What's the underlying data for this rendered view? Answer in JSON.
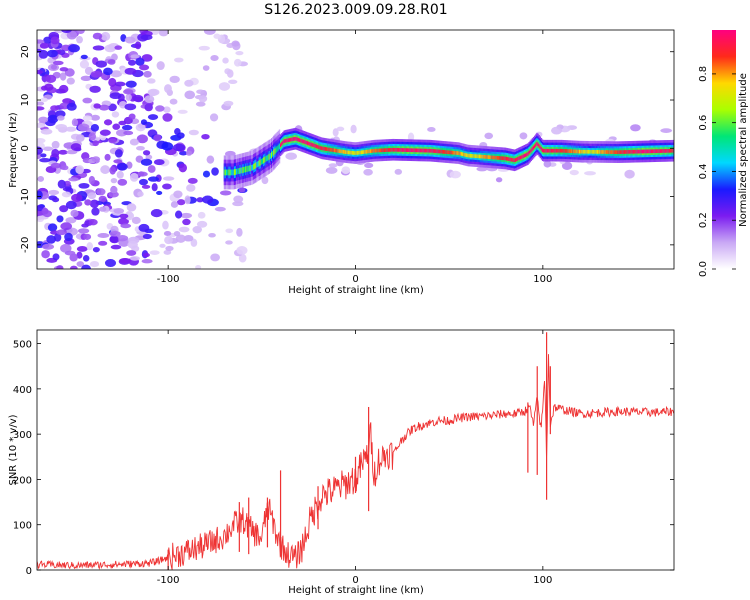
{
  "title": "S126.2023.009.09.28.R01",
  "chart_data": [
    {
      "type": "heatmap",
      "xlabel": "Height of straight line (km)",
      "ylabel": "Frequency (Hz)",
      "xlim": [
        -170,
        170
      ],
      "ylim": [
        -25,
        24.5
      ],
      "xticks": [
        "-100",
        "0",
        "100"
      ],
      "yticks": [
        "-20",
        "-10",
        "0",
        "10",
        "20"
      ],
      "ridge": {
        "x": [
          -65,
          -55,
          -45,
          -38,
          -32,
          -25,
          -18,
          -10,
          -5,
          0,
          10,
          20,
          40,
          55,
          60,
          70,
          80,
          85,
          92,
          97,
          100,
          110,
          120,
          140,
          160,
          170
        ],
        "y": [
          -5,
          -4,
          -1.5,
          1.5,
          2,
          1,
          0,
          -0.5,
          -0.8,
          -1,
          -0.5,
          -0.3,
          -0.5,
          -1,
          -1.5,
          -1.8,
          -2.1,
          -2.5,
          -1.2,
          1,
          -0.5,
          -0.5,
          -0.7,
          -0.8,
          -0.6,
          -0.5
        ]
      },
      "colorbar": {
        "label": "Normalized spectral amplitude",
        "range": [
          0,
          0.98
        ],
        "ticks": [
          "0.0",
          "0.2",
          "0.4",
          "0.6",
          "0.8"
        ],
        "colors": [
          "#ffffff",
          "#c9a8f5",
          "#7b1cf0",
          "#1a1aff",
          "#00d8ff",
          "#00e676",
          "#aaff00",
          "#ffd800",
          "#ff2a1a",
          "#ff007f"
        ]
      }
    },
    {
      "type": "line",
      "xlabel": "Height of straight line (km)",
      "ylabel": "SNR (10 * v/v)",
      "xlim": [
        -170,
        170
      ],
      "ylim": [
        0,
        530
      ],
      "xticks": [
        "-100",
        "0",
        "100"
      ],
      "yticks": [
        "0",
        "100",
        "200",
        "300",
        "400",
        "500"
      ],
      "color": "#ee3333",
      "series": [
        {
          "x": [
            -170,
            -150,
            -130,
            -110,
            -105,
            -100,
            -90,
            -80,
            -70,
            -65,
            -60,
            -55,
            -50,
            -47,
            -45,
            -42,
            -40,
            -36,
            -32,
            -28,
            -25,
            -22,
            -18,
            -12,
            -8,
            -5,
            -2,
            0,
            3,
            6,
            8,
            10,
            12,
            15,
            18,
            20,
            25,
            30,
            35,
            40,
            45,
            50,
            55,
            60,
            70,
            80,
            85,
            90,
            93,
            95,
            97,
            99,
            100,
            101,
            102,
            103,
            104,
            106,
            110,
            120,
            140,
            160,
            170
          ],
          "y": [
            12,
            10,
            12,
            15,
            20,
            28,
            40,
            55,
            75,
            100,
            110,
            85,
            70,
            140,
            120,
            75,
            55,
            35,
            25,
            55,
            100,
            130,
            165,
            175,
            185,
            190,
            200,
            200,
            230,
            250,
            300,
            210,
            240,
            250,
            260,
            255,
            290,
            310,
            320,
            325,
            330,
            330,
            335,
            338,
            340,
            345,
            345,
            350,
            360,
            320,
            380,
            310,
            360,
            430,
            240,
            480,
            320,
            360,
            355,
            345,
            350,
            348,
            350
          ],
          "spikes": [
            {
              "x": -100,
              "min": 0,
              "max": 45
            },
            {
              "x": -62,
              "min": 40,
              "max": 150
            },
            {
              "x": -57,
              "min": 35,
              "max": 160
            },
            {
              "x": -47,
              "min": 50,
              "max": 160
            },
            {
              "x": -40,
              "min": 30,
              "max": 220
            },
            {
              "x": -20,
              "min": 90,
              "max": 185
            },
            {
              "x": 0,
              "min": 170,
              "max": 250
            },
            {
              "x": 7,
              "min": 130,
              "max": 360
            },
            {
              "x": 92,
              "min": 215,
              "max": 370
            },
            {
              "x": 97,
              "min": 210,
              "max": 450
            },
            {
              "x": 102,
              "min": 155,
              "max": 525
            },
            {
              "x": 104,
              "min": 300,
              "max": 450
            }
          ]
        }
      ]
    }
  ]
}
